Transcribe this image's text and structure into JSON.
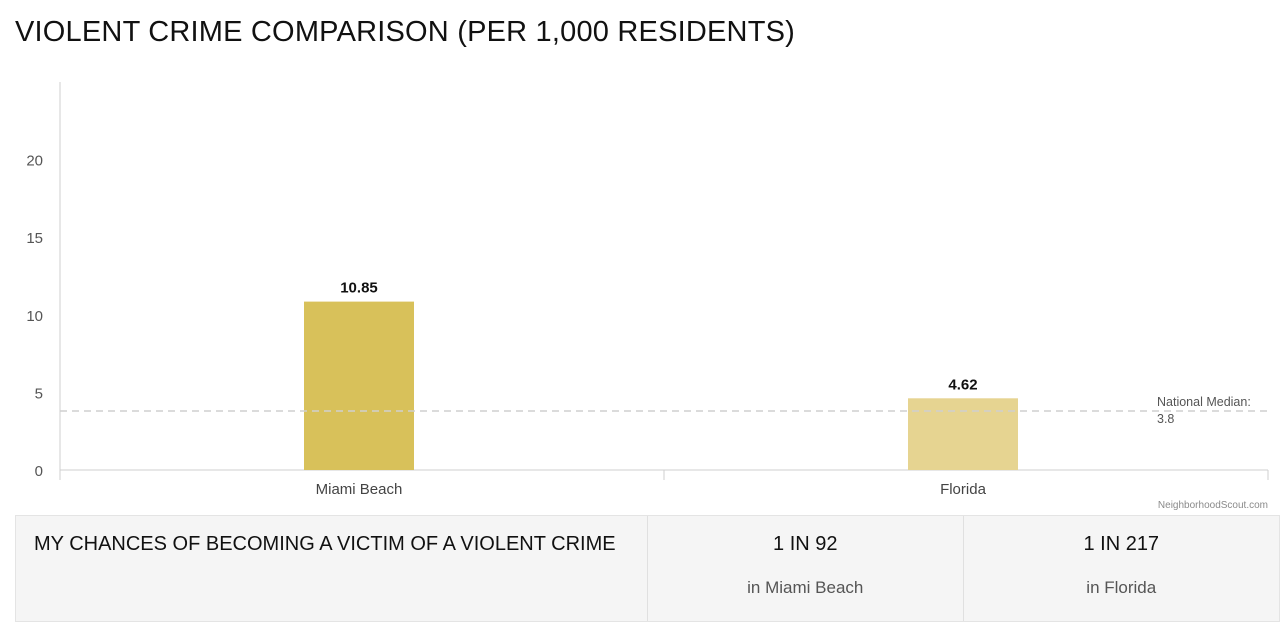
{
  "title": "VIOLENT CRIME COMPARISON (PER 1,000 RESIDENTS)",
  "watermark": "NeighborhoodScout.com",
  "chart_data": {
    "type": "bar",
    "title": "VIOLENT CRIME COMPARISON (PER 1,000 RESIDENTS)",
    "categories": [
      "Miami Beach",
      "Florida"
    ],
    "values": [
      10.85,
      4.62
    ],
    "value_labels": [
      "10.85",
      "4.62"
    ],
    "colors": [
      "#d8c15a",
      "#e6d491"
    ],
    "ylim": [
      0,
      25
    ],
    "yticks": [
      0,
      5,
      10,
      15,
      20
    ],
    "xlabel": "",
    "ylabel": "",
    "grid": false,
    "reference_line": {
      "value": 3.8,
      "label_line1": "National Median:",
      "label_line2": "3.8"
    }
  },
  "chances": {
    "label": "MY CHANCES OF BECOMING A VICTIM OF A VIOLENT CRIME",
    "stats": [
      {
        "odds": "1 IN 92",
        "place": "in Miami Beach"
      },
      {
        "odds": "1 IN 217",
        "place": "in Florida"
      }
    ]
  }
}
